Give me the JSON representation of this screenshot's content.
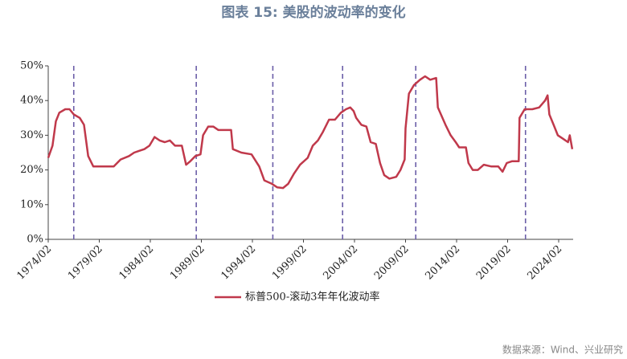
{
  "chart_data": {
    "type": "line",
    "title": "图表 15:     美股的波动率的变化",
    "source": "数据来源：Wind、兴业研究",
    "x": [
      "1974/02",
      "1974/07",
      "1974/11",
      "1975/03",
      "1975/10",
      "1976/03",
      "1976/08",
      "1977/03",
      "1977/08",
      "1978/01",
      "1978/07",
      "1979/07",
      "1980/07",
      "1981/03",
      "1982/01",
      "1982/07",
      "1983/01",
      "1983/07",
      "1984/01",
      "1984/07",
      "1985/01",
      "1985/07",
      "1986/01",
      "1986/07",
      "1987/03",
      "1987/08",
      "1988/01",
      "1988/07",
      "1989/01",
      "1989/04",
      "1989/10",
      "1990/04",
      "1990/10",
      "1991/07",
      "1992/01",
      "1992/03",
      "1993/01",
      "1994/01",
      "1994/10",
      "1995/04",
      "1996/01",
      "1996/07",
      "1997/02",
      "1997/08",
      "1998/03",
      "1998/10",
      "1999/07",
      "2000/01",
      "2000/07",
      "2001/01",
      "2001/08",
      "2002/03",
      "2002/10",
      "2003/04",
      "2003/09",
      "2004/01",
      "2004/04",
      "2004/10",
      "2005/04",
      "2005/09",
      "2006/03",
      "2006/08",
      "2007/01",
      "2007/07",
      "2008/03",
      "2008/08",
      "2009/01",
      "2009/02",
      "2009/06",
      "2009/12",
      "2010/07",
      "2011/01",
      "2011/07",
      "2012/02",
      "2012/04",
      "2013/01",
      "2013/07",
      "2014/01",
      "2014/05",
      "2015/01",
      "2015/04",
      "2015/09",
      "2016/03",
      "2016/10",
      "2017/07",
      "2018/03",
      "2018/08",
      "2019/01",
      "2019/07",
      "2020/03",
      "2020/04",
      "2020/10",
      "2021/07",
      "2022/03",
      "2022/10",
      "2023/01",
      "2023/03",
      "2023/08",
      "2024/01",
      "2024/07",
      "2025/01",
      "2025/03",
      "2025/06"
    ],
    "series": [
      {
        "name": "标普500-滚动3年年化波动率",
        "color": "#c0394b",
        "values": [
          23.5,
          27,
          34,
          36.5,
          37.5,
          37.5,
          36,
          35,
          33,
          24,
          21,
          21,
          21,
          23,
          24,
          25,
          25.5,
          26,
          27,
          29.5,
          28.5,
          28,
          28.5,
          27,
          27,
          21.5,
          22.5,
          24,
          24.5,
          30,
          32.5,
          32.5,
          31.5,
          31.5,
          31.5,
          26,
          25,
          24.5,
          21,
          17,
          16,
          15,
          14.8,
          16,
          19,
          21.5,
          23.5,
          27,
          28.5,
          31,
          34.5,
          34.5,
          36.5,
          37.5,
          38,
          37,
          35,
          33,
          32.5,
          28,
          27.5,
          22,
          18.5,
          17.5,
          18,
          20,
          23,
          32,
          42,
          44.5,
          46,
          47,
          46,
          46.5,
          38,
          33,
          30,
          28,
          26.5,
          26.5,
          22,
          20,
          20,
          21.5,
          21,
          21,
          19.5,
          22,
          22.5,
          22.5,
          35,
          37.5,
          37.5,
          38,
          40,
          41.5,
          36,
          33,
          30,
          29,
          28,
          30,
          26
        ]
      }
    ],
    "vlines": [
      "1976/08",
      "1988/08",
      "1996/02",
      "2002/12",
      "2010/02",
      "2020/11"
    ],
    "vline_color": "#6b5ea8",
    "xlim": [
      "1974/02",
      "2025/07"
    ],
    "xticks": [
      "1974/02",
      "1979/02",
      "1984/02",
      "1989/02",
      "1994/02",
      "1999/02",
      "2004/02",
      "2009/02",
      "2014/02",
      "2019/02",
      "2024/02"
    ],
    "ylim": [
      0,
      50
    ],
    "yticks": [
      {
        "value": 0,
        "label": "0%"
      },
      {
        "value": 10,
        "label": "10%"
      },
      {
        "value": 20,
        "label": "20%"
      },
      {
        "value": 30,
        "label": "30%"
      },
      {
        "value": 40,
        "label": "40%"
      },
      {
        "value": 50,
        "label": "50%"
      }
    ]
  }
}
